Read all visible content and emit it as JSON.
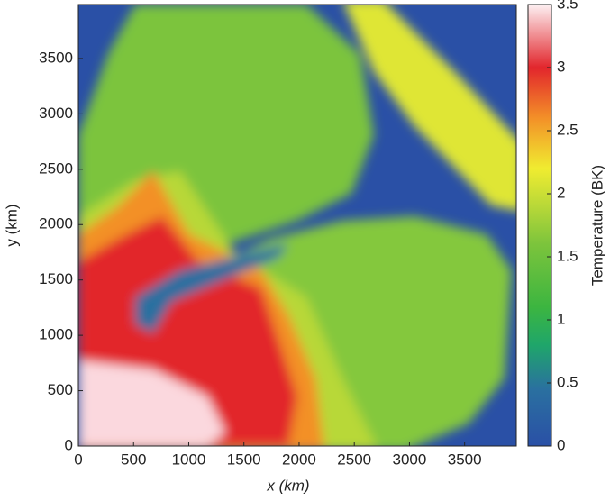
{
  "chart_data": {
    "type": "heatmap",
    "xlabel": "x (km)",
    "ylabel": "y (km)",
    "colorbar_label": "Temperature (BK)",
    "xlim": [
      0,
      3968
    ],
    "ylim": [
      0,
      3988
    ],
    "xticks": [
      0,
      500,
      1000,
      1500,
      2000,
      2500,
      3000,
      3500
    ],
    "yticks": [
      0,
      500,
      1000,
      1500,
      2000,
      2500,
      3000,
      3500
    ],
    "clim": [
      0,
      3.5
    ],
    "cticks": [
      0,
      0.5,
      1,
      1.5,
      2,
      2.5,
      3,
      3.5
    ],
    "colormap": [
      [
        0,
        "#2a50a6"
      ],
      [
        0.45,
        "#2a70a0"
      ],
      [
        0.8,
        "#1fa66a"
      ],
      [
        1.1,
        "#3cb540"
      ],
      [
        1.6,
        "#7cc43c"
      ],
      [
        1.9,
        "#b8d838"
      ],
      [
        2.2,
        "#f0ec30"
      ],
      [
        2.6,
        "#f39028"
      ],
      [
        3.0,
        "#e2262c"
      ],
      [
        3.5,
        "#fdf0f2"
      ]
    ]
  }
}
